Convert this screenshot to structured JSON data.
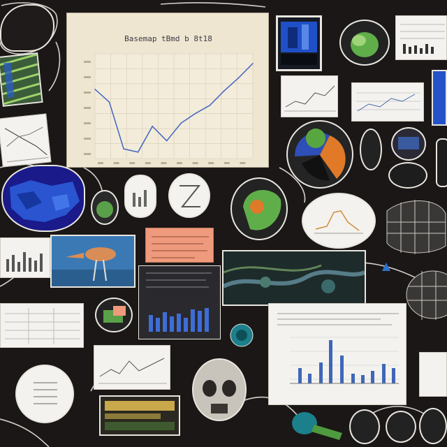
{
  "main_panel": {
    "title": "Basemap tBmd b 8t18"
  },
  "chart_data": {
    "type": "line",
    "x": [
      1,
      2,
      3,
      4,
      5,
      6,
      7,
      8,
      9,
      10,
      11,
      12
    ],
    "values": [
      86,
      70,
      12,
      8,
      40,
      22,
      44,
      56,
      66,
      84,
      100,
      118
    ],
    "ylim": [
      0,
      130
    ],
    "grid": true,
    "colors": {
      "line": "#4a6cc2",
      "grid": "#d6ccb5",
      "background": "#efe6d2"
    }
  },
  "colors": {
    "board": "#1a1716",
    "chalk": "#e9e6df",
    "paper": "#f3f2ee",
    "blue": "#2e4fb8",
    "green": "#58a640",
    "orange": "#e07a28",
    "salmon": "#ef9a7c"
  }
}
